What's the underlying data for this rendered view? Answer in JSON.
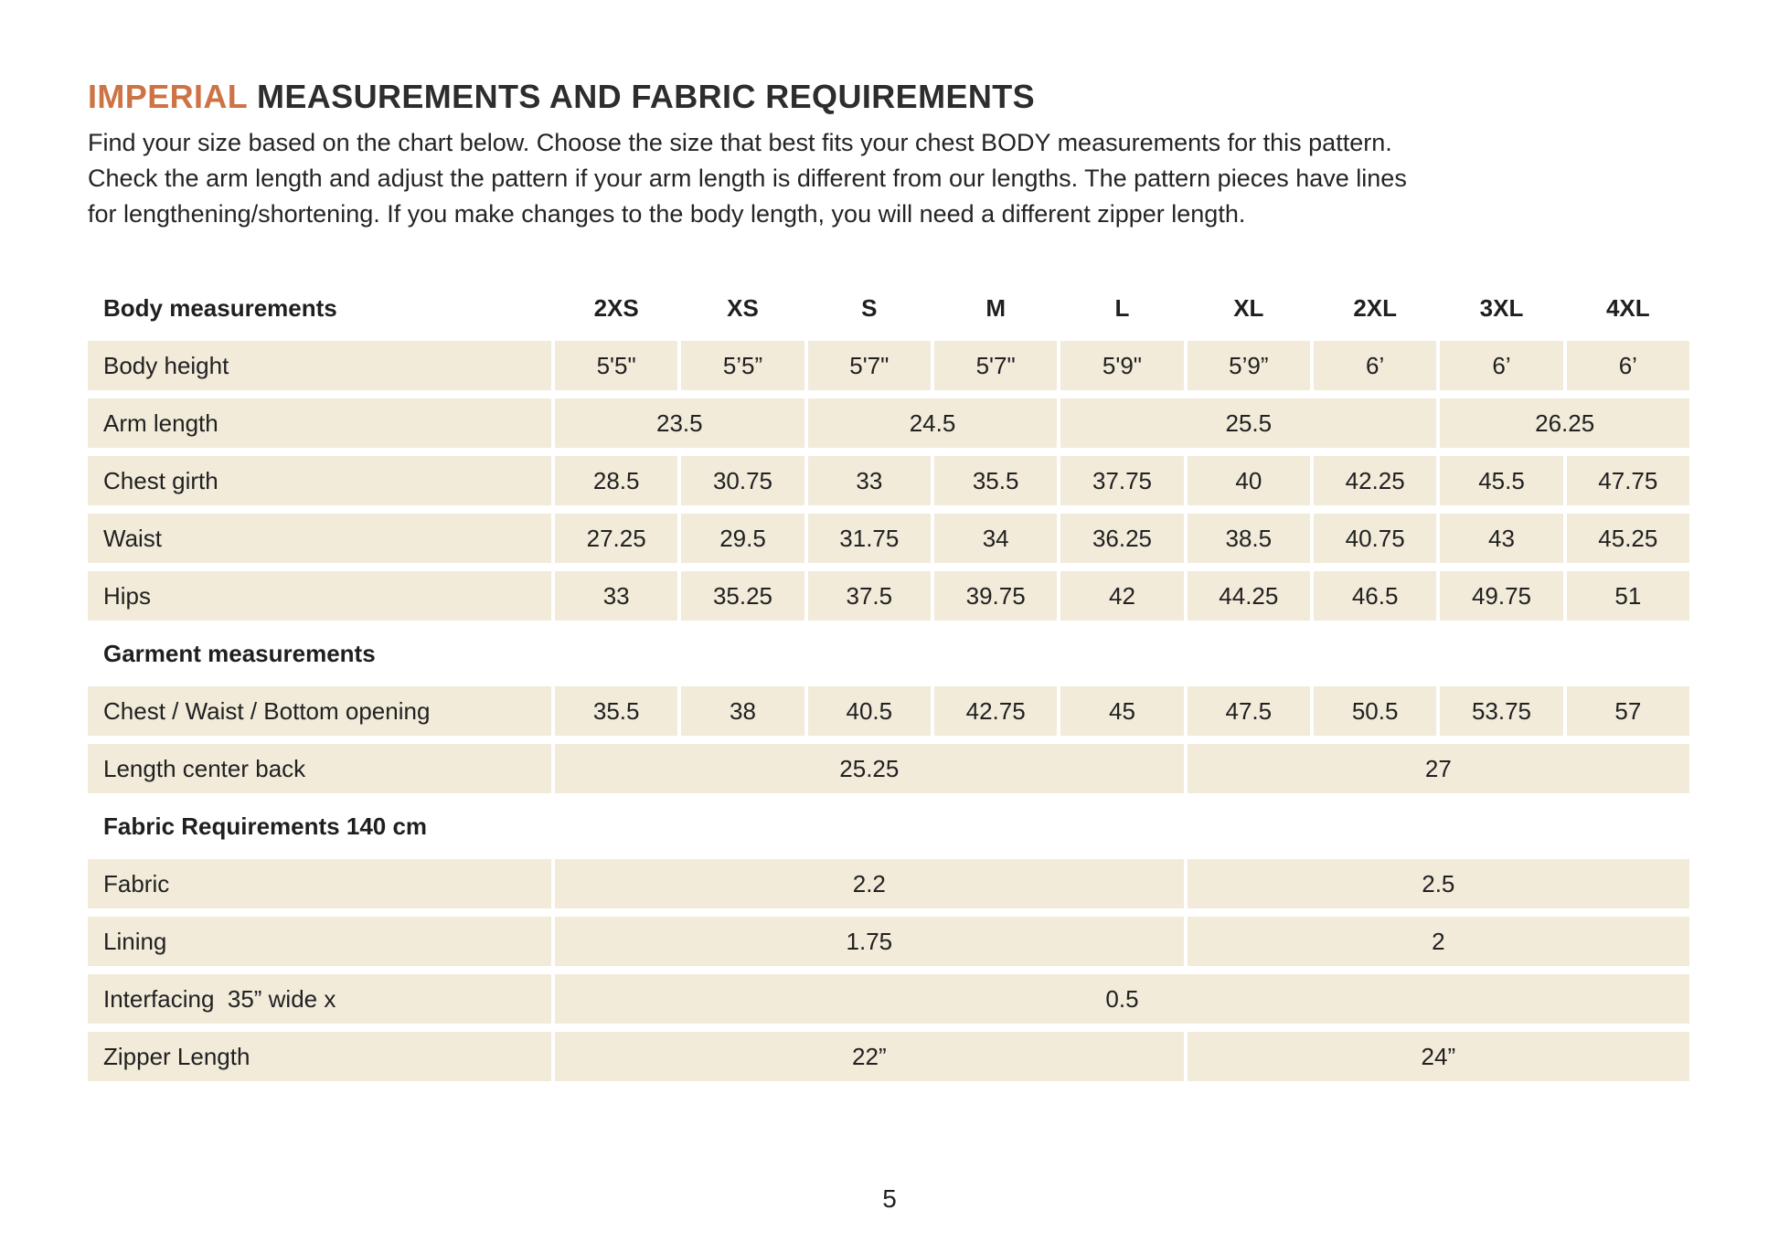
{
  "page": {
    "title": {
      "highlight": "IMPERIAL",
      "rest": " MEASUREMENTS AND FABRIC REQUIREMENTS"
    },
    "intro_lines": [
      "Find your size based on the chart below. Choose the size that best fits your chest BODY measurements for this pattern.",
      "Check the arm length and adjust the pattern if your arm length is different from our lengths. The pattern pieces have lines",
      "for lengthening/shortening. If you make changes to the body length, you will need a different zipper length."
    ],
    "page_number": "5"
  },
  "colors": {
    "accent": "#cd7345",
    "cell_bg": "#f2ebda",
    "text": "#242424"
  },
  "table": {
    "header": {
      "label": "Body measurements",
      "sizes": [
        "2XS",
        "XS",
        "S",
        "M",
        "L",
        "XL",
        "2XL",
        "3XL",
        "4XL"
      ]
    },
    "rows": [
      {
        "type": "data",
        "label": "Body height",
        "cells": [
          {
            "text": "5'5\"",
            "span": 1
          },
          {
            "text": "5’5”",
            "span": 1
          },
          {
            "text": "5'7\"",
            "span": 1
          },
          {
            "text": "5'7\"",
            "span": 1
          },
          {
            "text": "5'9\"",
            "span": 1
          },
          {
            "text": "5’9”",
            "span": 1
          },
          {
            "text": "6’",
            "span": 1
          },
          {
            "text": "6’",
            "span": 1
          },
          {
            "text": "6’",
            "span": 1
          }
        ]
      },
      {
        "type": "data",
        "label": "Arm length",
        "cells": [
          {
            "text": "23.5",
            "span": 2
          },
          {
            "text": "24.5",
            "span": 2
          },
          {
            "text": "25.5",
            "span": 3
          },
          {
            "text": "26.25",
            "span": 2
          }
        ]
      },
      {
        "type": "data",
        "label": "Chest girth",
        "cells": [
          {
            "text": "28.5",
            "span": 1
          },
          {
            "text": "30.75",
            "span": 1
          },
          {
            "text": "33",
            "span": 1
          },
          {
            "text": "35.5",
            "span": 1
          },
          {
            "text": "37.75",
            "span": 1
          },
          {
            "text": "40",
            "span": 1
          },
          {
            "text": "42.25",
            "span": 1
          },
          {
            "text": "45.5",
            "span": 1
          },
          {
            "text": "47.75",
            "span": 1
          }
        ]
      },
      {
        "type": "data",
        "label": "Waist",
        "cells": [
          {
            "text": "27.25",
            "span": 1
          },
          {
            "text": "29.5",
            "span": 1
          },
          {
            "text": "31.75",
            "span": 1
          },
          {
            "text": "34",
            "span": 1
          },
          {
            "text": "36.25",
            "span": 1
          },
          {
            "text": "38.5",
            "span": 1
          },
          {
            "text": "40.75",
            "span": 1
          },
          {
            "text": "43",
            "span": 1
          },
          {
            "text": "45.25",
            "span": 1
          }
        ]
      },
      {
        "type": "data",
        "label": "Hips",
        "cells": [
          {
            "text": "33",
            "span": 1
          },
          {
            "text": "35.25",
            "span": 1
          },
          {
            "text": "37.5",
            "span": 1
          },
          {
            "text": "39.75",
            "span": 1
          },
          {
            "text": "42",
            "span": 1
          },
          {
            "text": "44.25",
            "span": 1
          },
          {
            "text": "46.5",
            "span": 1
          },
          {
            "text": "49.75",
            "span": 1
          },
          {
            "text": "51",
            "span": 1
          }
        ]
      },
      {
        "type": "section",
        "label": "Garment measurements"
      },
      {
        "type": "data",
        "label": "Chest / Waist / Bottom opening",
        "cells": [
          {
            "text": "35.5",
            "span": 1
          },
          {
            "text": "38",
            "span": 1
          },
          {
            "text": "40.5",
            "span": 1
          },
          {
            "text": "42.75",
            "span": 1
          },
          {
            "text": "45",
            "span": 1
          },
          {
            "text": "47.5",
            "span": 1
          },
          {
            "text": "50.5",
            "span": 1
          },
          {
            "text": "53.75",
            "span": 1
          },
          {
            "text": "57",
            "span": 1
          }
        ]
      },
      {
        "type": "data",
        "label": "Length center back",
        "cells": [
          {
            "text": "25.25",
            "span": 5
          },
          {
            "text": "27",
            "span": 4
          }
        ]
      },
      {
        "type": "section",
        "label": "Fabric Requirements 140 cm"
      },
      {
        "type": "data",
        "label": "Fabric",
        "cells": [
          {
            "text": "2.2",
            "span": 5
          },
          {
            "text": "2.5",
            "span": 4
          }
        ]
      },
      {
        "type": "data",
        "label": "Lining",
        "cells": [
          {
            "text": "1.75",
            "span": 5
          },
          {
            "text": "2",
            "span": 4
          }
        ]
      },
      {
        "type": "data",
        "label": "Interfacing  35” wide x",
        "cells": [
          {
            "text": "0.5",
            "span": 9
          }
        ]
      },
      {
        "type": "data",
        "label": "Zipper Length",
        "cells": [
          {
            "text": "22”",
            "span": 5
          },
          {
            "text": "24”",
            "span": 4
          }
        ]
      }
    ]
  }
}
